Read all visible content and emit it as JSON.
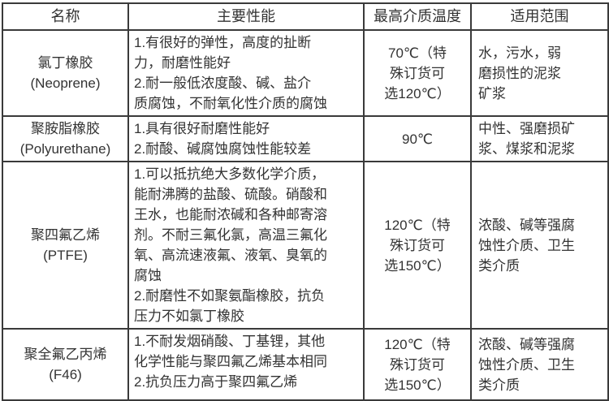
{
  "colors": {
    "background": "#ffffff",
    "border": "#3a3a3a",
    "text": "#333333"
  },
  "table": {
    "headers": [
      "名称",
      "主要性能",
      "最高介质温度",
      "适用范围"
    ],
    "rows": [
      {
        "name": "氯丁橡胶\n(Neoprene)",
        "performance": "1.有很好的弹性，高度的扯断\n力，耐磨性能好\n2.耐一般低浓度酸、碱、盐介\n质腐蚀，不耐氧化性介质的腐蚀",
        "max_temp": "70℃（特\n殊订货可\n选120℃）",
        "application": "水，污水，弱\n磨损性的泥浆\n矿浆"
      },
      {
        "name": "聚胺脂橡胶\n(Polyurethane)",
        "performance": "1.具有很好耐磨性能好\n2.耐酸、碱腐蚀腐蚀性能较差",
        "max_temp": "90℃",
        "application": "中性、强磨损矿\n浆、煤浆和泥浆"
      },
      {
        "name": "聚四氟乙烯\n(PTFE)",
        "performance": "1.可以抵抗绝大多数化学介质，\n能耐沸腾的盐酸、硫酸。硝酸和\n王水，也能耐浓碱和各种邮寄溶\n剂。不耐三氟化氯，高温三氟化\n氧、高流速液氟、液氧、臭氧的\n腐蚀\n2.耐磨性不如聚氨酯橡胶，抗负\n压力不如氯丁橡胶",
        "max_temp": "120℃（特\n殊订货可\n选150℃）",
        "application": "浓酸、碱等强腐\n蚀性介质、卫生\n类介质"
      },
      {
        "name": "聚全氟乙丙烯\n(F46)",
        "performance": "1.不耐发烟硝酸、丁基锂，其他\n化学性能与聚四氟乙烯基本相同\n2.抗负压力高于聚四氟乙烯",
        "max_temp": "120℃（特\n殊订货可\n选150℃）",
        "application": "浓酸、碱等强腐\n蚀性介质、卫生\n类介质"
      }
    ]
  }
}
